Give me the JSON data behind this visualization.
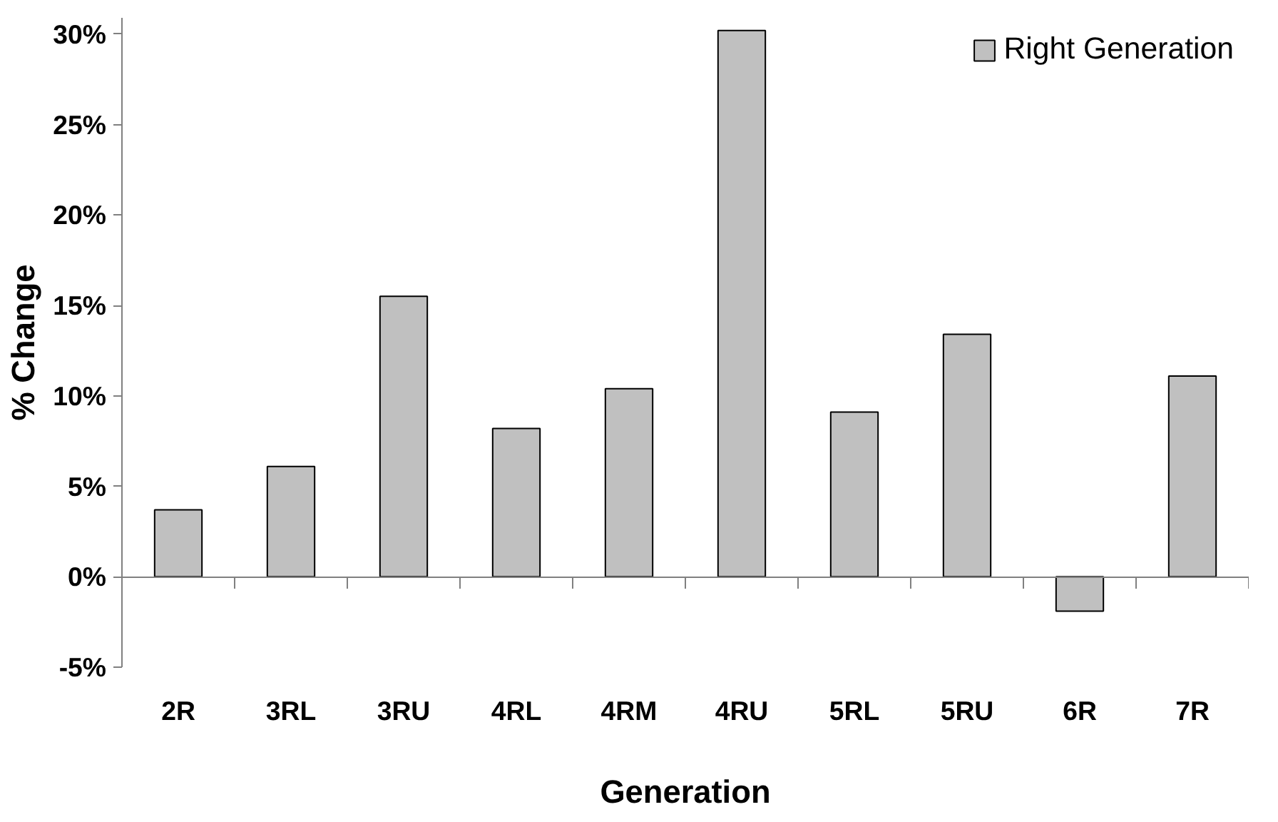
{
  "chart_data": {
    "type": "bar",
    "xlabel": "Generation",
    "ylabel": "% Change",
    "categories": [
      "2R",
      "3RL",
      "3RU",
      "4RL",
      "4RM",
      "4RU",
      "5RL",
      "5RU",
      "6R",
      "7R"
    ],
    "series": [
      {
        "name": "Right Generation",
        "color": "#c0c0c0",
        "values": [
          3.7,
          6.1,
          15.5,
          8.2,
          10.4,
          30.2,
          9.1,
          13.4,
          -1.9,
          11.1
        ]
      }
    ],
    "ylim": [
      -5,
      30.9
    ],
    "yticks": [
      {
        "value": -5,
        "label": "-5%"
      },
      {
        "value": 0,
        "label": "0%"
      },
      {
        "value": 5,
        "label": "5%"
      },
      {
        "value": 10,
        "label": "10%"
      },
      {
        "value": 15,
        "label": "15%"
      },
      {
        "value": 20,
        "label": "20%"
      },
      {
        "value": 25,
        "label": "25%"
      },
      {
        "value": 30,
        "label": "30%"
      }
    ],
    "legend": "top right"
  }
}
